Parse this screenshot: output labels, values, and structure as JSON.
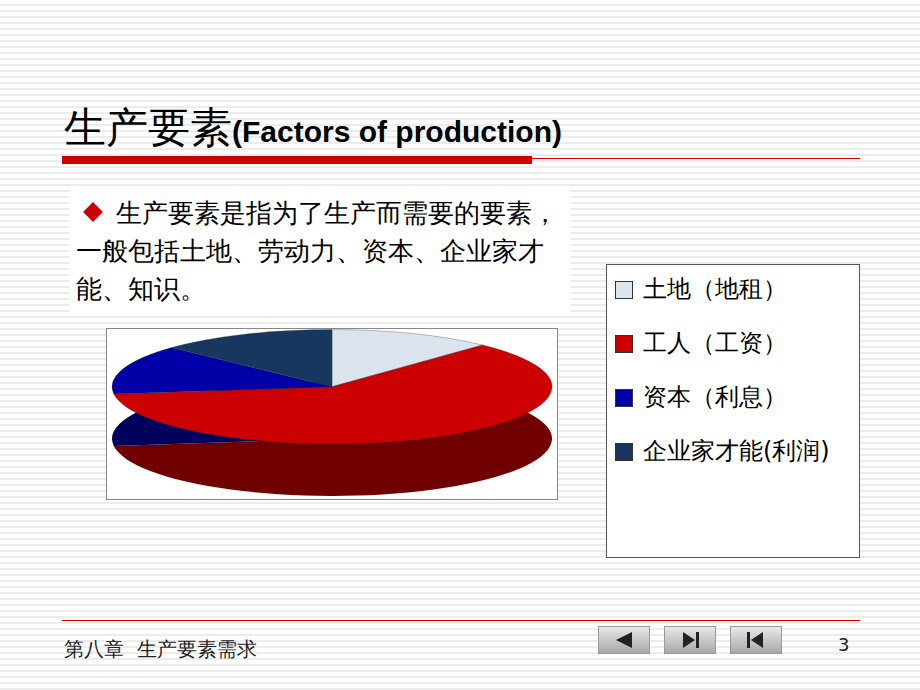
{
  "chart_data": {
    "type": "pie",
    "categories": [
      "土地（地租）",
      "工人（工资）",
      "资本（利息）",
      "企业家才能(利润)"
    ],
    "values": [
      12,
      61,
      14,
      13
    ],
    "colors": [
      "#dbe3ec",
      "#cc0000",
      "#0000a8",
      "#17375e"
    ],
    "legend": "right",
    "data_labels": false
  },
  "slide": {
    "title": "生产要素(Factors of production)",
    "bullet": "生产要素是指为了生产而需要的要素，一般包括土地、劳动力、资本、企业家才能、知识。",
    "footer": "第八章  生产要素需求",
    "page": "3"
  }
}
